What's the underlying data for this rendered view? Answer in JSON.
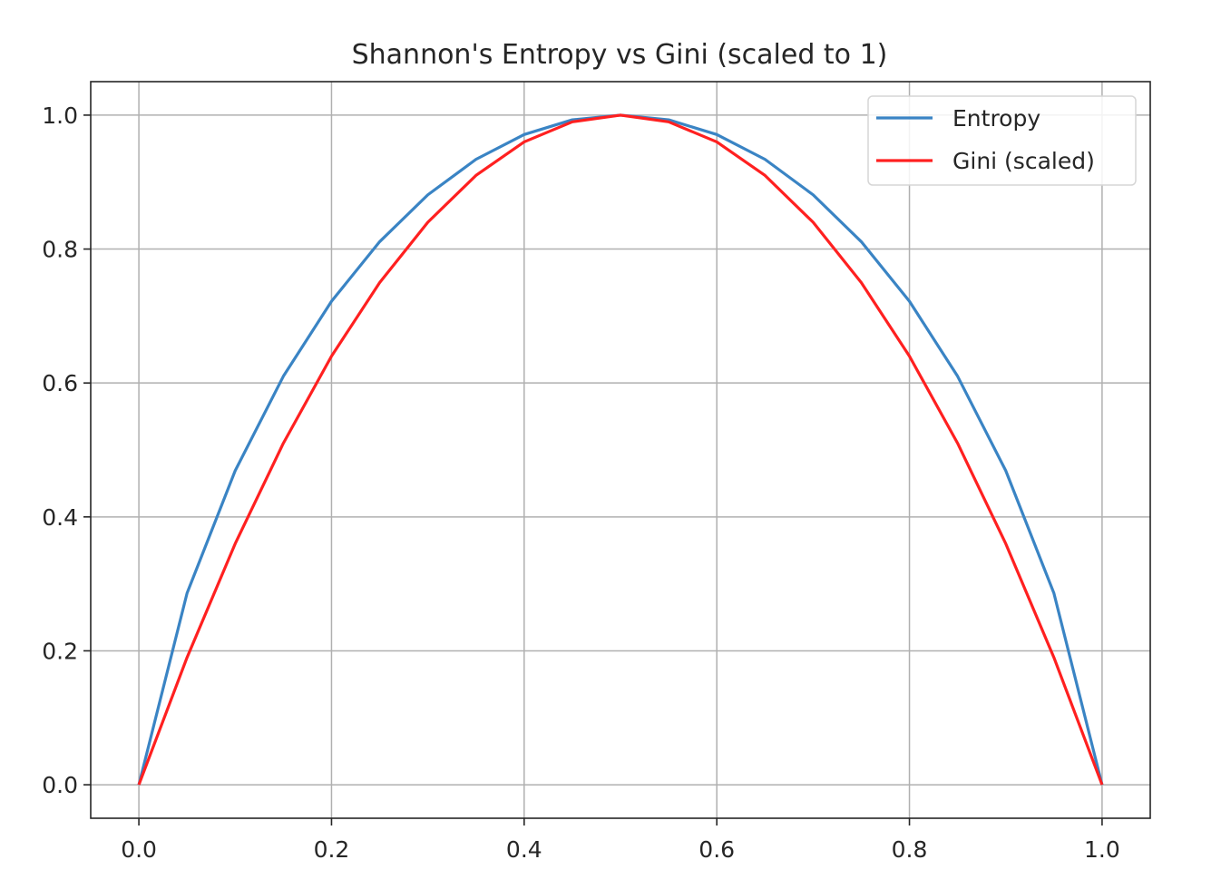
{
  "chart_data": {
    "type": "line",
    "title": "Shannon's Entropy vs Gini (scaled to 1)",
    "xlabel": "",
    "ylabel": "",
    "xlim": [
      -0.05,
      1.05
    ],
    "ylim": [
      -0.05,
      1.05
    ],
    "xticks": [
      "0.0",
      "0.2",
      "0.4",
      "0.6",
      "0.8",
      "1.0"
    ],
    "yticks": [
      "0.0",
      "0.2",
      "0.4",
      "0.6",
      "0.8",
      "1.0"
    ],
    "grid": true,
    "legend_position": "top-right",
    "x": [
      0.0,
      0.05,
      0.1,
      0.15,
      0.2,
      0.25,
      0.3,
      0.35,
      0.4,
      0.45,
      0.5,
      0.55,
      0.6,
      0.65,
      0.7,
      0.75,
      0.8,
      0.85,
      0.9,
      0.95,
      1.0
    ],
    "series": [
      {
        "name": "Entropy",
        "color": "#3a84c4",
        "values": [
          0.0,
          0.286,
          0.469,
          0.61,
          0.722,
          0.811,
          0.881,
          0.934,
          0.971,
          0.993,
          1.0,
          0.993,
          0.971,
          0.934,
          0.881,
          0.811,
          0.722,
          0.61,
          0.469,
          0.286,
          0.0
        ]
      },
      {
        "name": "Gini (scaled)",
        "color": "#ff2020",
        "values": [
          0.0,
          0.19,
          0.36,
          0.51,
          0.64,
          0.75,
          0.84,
          0.91,
          0.96,
          0.99,
          1.0,
          0.99,
          0.96,
          0.91,
          0.84,
          0.75,
          0.64,
          0.51,
          0.36,
          0.19,
          0.0
        ]
      }
    ]
  }
}
